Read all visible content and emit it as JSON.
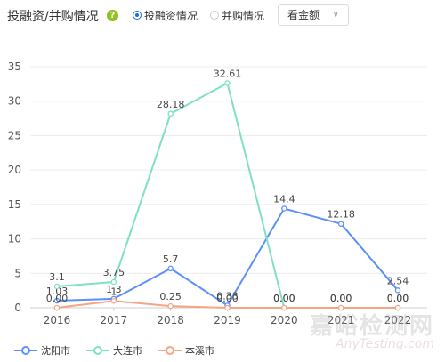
{
  "header": {
    "title": "投融资/并购情况",
    "help_icon": "help-icon",
    "radio_investment": "投融资情况",
    "radio_merger": "并购情况",
    "select_value": "看金额"
  },
  "chart_data": {
    "type": "line",
    "categories": [
      "2016",
      "2017",
      "2018",
      "2019",
      "2020",
      "2021",
      "2022"
    ],
    "ylim": [
      0,
      35
    ],
    "yticks": [
      0,
      5,
      10,
      15,
      20,
      25,
      30,
      35
    ],
    "series": [
      {
        "name": "沈阳市",
        "color": "#5b8ff9",
        "values": [
          1.03,
          1.3,
          5.7,
          0.33,
          14.4,
          12.18,
          2.54
        ],
        "labels": [
          "1.03",
          "1.3",
          "5.7",
          "0.33",
          "14.4",
          "12.18",
          "2.54"
        ]
      },
      {
        "name": "大连市",
        "color": "#7ee0c4",
        "values": [
          3.1,
          3.75,
          28.18,
          32.61,
          0,
          0,
          0
        ],
        "labels": [
          "3.1",
          "3.75",
          "28.18",
          "32.61",
          "0.00",
          "0.00",
          "0.00"
        ]
      },
      {
        "name": "本溪市",
        "color": "#f4a585",
        "values": [
          0,
          1,
          0.25,
          0,
          0,
          0,
          0
        ],
        "labels": [
          "0.00",
          "1",
          "0.25",
          "0.00",
          "0.00",
          "0.00",
          "0.00"
        ]
      }
    ]
  },
  "watermark": {
    "cn": "嘉峪检测网",
    "en": "AnyTesting.com"
  }
}
